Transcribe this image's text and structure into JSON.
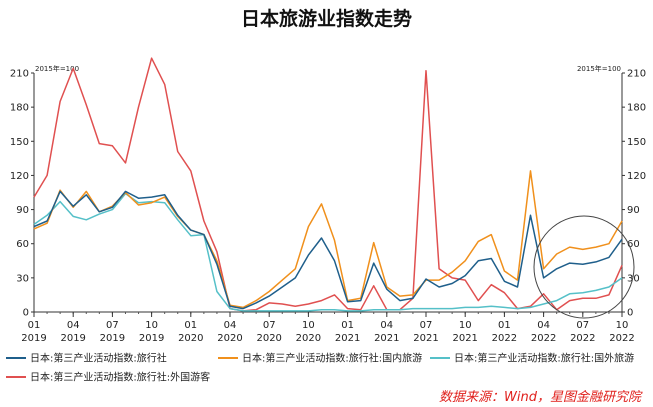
{
  "title": "日本旅游业指数走势",
  "source": "数据来源：Wind，星图金融研究院",
  "chart_data": {
    "type": "line",
    "unit_left": "2015年=100",
    "unit_right": "2015年=100",
    "ylim": [
      0,
      210
    ],
    "yticks": [
      0,
      30,
      60,
      90,
      120,
      150,
      180,
      210
    ],
    "x_months": [
      "2019-01",
      "2019-02",
      "2019-03",
      "2019-04",
      "2019-05",
      "2019-06",
      "2019-07",
      "2019-08",
      "2019-09",
      "2019-10",
      "2019-11",
      "2019-12",
      "2020-01",
      "2020-02",
      "2020-03",
      "2020-04",
      "2020-05",
      "2020-06",
      "2020-07",
      "2020-08",
      "2020-09",
      "2020-10",
      "2020-11",
      "2020-12",
      "2021-01",
      "2021-02",
      "2021-03",
      "2021-04",
      "2021-05",
      "2021-06",
      "2021-07",
      "2021-08",
      "2021-09",
      "2021-10",
      "2021-11",
      "2021-12",
      "2022-01",
      "2022-02",
      "2022-03",
      "2022-04",
      "2022-05",
      "2022-06",
      "2022-07",
      "2022-08",
      "2022-09",
      "2022-10"
    ],
    "xtick_labels": [
      {
        "month": "01",
        "year": "2019",
        "index": 0
      },
      {
        "month": "04",
        "year": "2019",
        "index": 3
      },
      {
        "month": "07",
        "year": "2019",
        "index": 6
      },
      {
        "month": "10",
        "year": "2019",
        "index": 9
      },
      {
        "month": "01",
        "year": "2020",
        "index": 12
      },
      {
        "month": "04",
        "year": "2020",
        "index": 15
      },
      {
        "month": "07",
        "year": "2020",
        "index": 18
      },
      {
        "month": "10",
        "year": "2020",
        "index": 21
      },
      {
        "month": "01",
        "year": "2021",
        "index": 24
      },
      {
        "month": "04",
        "year": "2021",
        "index": 27
      },
      {
        "month": "07",
        "year": "2021",
        "index": 30
      },
      {
        "month": "10",
        "year": "2021",
        "index": 33
      },
      {
        "month": "01",
        "year": "2022",
        "index": 36
      },
      {
        "month": "04",
        "year": "2022",
        "index": 39
      },
      {
        "month": "07",
        "year": "2022",
        "index": 42
      },
      {
        "month": "10",
        "year": "2022",
        "index": 45
      }
    ],
    "series": [
      {
        "name": "日本:第三产业活动指数:旅行社",
        "color": "#1f5f8b",
        "values": [
          75,
          80,
          106,
          93,
          103,
          88,
          92,
          106,
          100,
          101,
          103,
          85,
          72,
          68,
          42,
          5,
          3,
          8,
          14,
          22,
          30,
          50,
          65,
          45,
          9,
          10,
          43,
          20,
          10,
          12,
          29,
          22,
          25,
          32,
          45,
          47,
          27,
          22,
          85,
          30,
          38,
          43,
          42,
          44,
          48,
          64
        ]
      },
      {
        "name": "日本:第三产业活动指数:旅行社:国内旅游",
        "color": "#f0901c",
        "values": [
          73,
          78,
          107,
          92,
          106,
          88,
          93,
          105,
          94,
          96,
          101,
          84,
          72,
          68,
          45,
          6,
          4,
          10,
          18,
          28,
          38,
          75,
          95,
          63,
          10,
          12,
          61,
          22,
          14,
          15,
          28,
          28,
          35,
          45,
          62,
          68,
          36,
          28,
          124,
          38,
          51,
          57,
          55,
          57,
          60,
          80
        ]
      },
      {
        "name": "日本:第三产业活动指数:旅行社:国外旅游",
        "color": "#55c0c8",
        "values": [
          77,
          85,
          97,
          84,
          81,
          86,
          90,
          104,
          96,
          97,
          96,
          81,
          67,
          68,
          18,
          3,
          1,
          1,
          1,
          1,
          1,
          1,
          2,
          2,
          1,
          1,
          2,
          2,
          2,
          3,
          3,
          3,
          3,
          4,
          4,
          5,
          4,
          3,
          4,
          7,
          10,
          16,
          17,
          19,
          22,
          30
        ]
      },
      {
        "name": "日本:第三产业活动指数:旅行社:外国游客",
        "color": "#e05050",
        "values": [
          101,
          120,
          185,
          214,
          182,
          148,
          146,
          131,
          180,
          223,
          200,
          141,
          124,
          80,
          53,
          3,
          1,
          2,
          8,
          7,
          5,
          7,
          10,
          15,
          3,
          2,
          23,
          2,
          2,
          12,
          212,
          38,
          30,
          28,
          10,
          24,
          17,
          3,
          5,
          16,
          2,
          10,
          12,
          12,
          15,
          41
        ]
      }
    ]
  }
}
